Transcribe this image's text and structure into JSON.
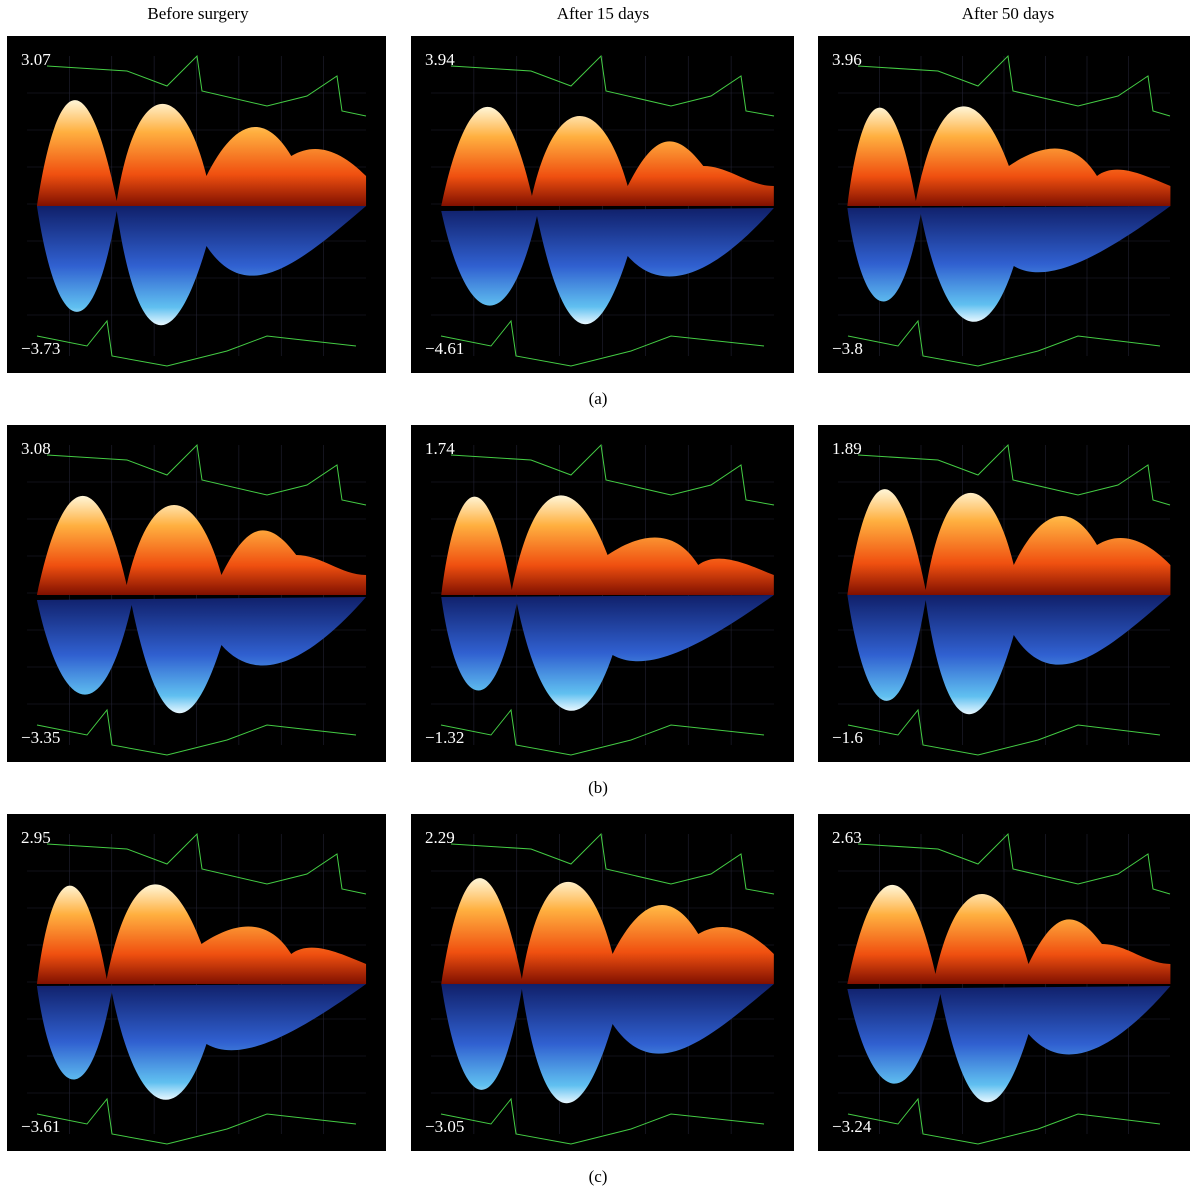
{
  "column_headers": [
    "Before surgery",
    "After 15 days",
    "After 50 days"
  ],
  "rows": [
    {
      "label": "(a)",
      "panels": [
        {
          "max": "3.07",
          "min": "−3.73"
        },
        {
          "max": "3.94",
          "min": "−4.61"
        },
        {
          "max": "3.96",
          "min": "−3.8"
        }
      ]
    },
    {
      "label": "(b)",
      "panels": [
        {
          "max": "3.08",
          "min": "−3.35"
        },
        {
          "max": "1.74",
          "min": "−1.32"
        },
        {
          "max": "1.89",
          "min": "−1.6"
        }
      ]
    },
    {
      "label": "(c)",
      "panels": [
        {
          "max": "2.95",
          "min": "−3.61"
        },
        {
          "max": "2.29",
          "min": "−3.05"
        },
        {
          "max": "2.63",
          "min": "−3.24"
        }
      ]
    }
  ]
}
